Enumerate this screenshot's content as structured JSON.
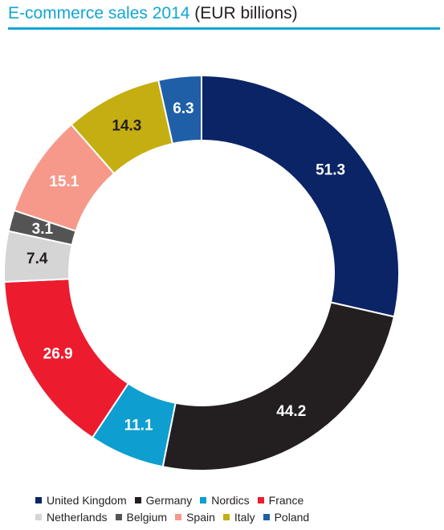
{
  "title": {
    "main": "E-commerce sales 2014",
    "unit": " (EUR billions)"
  },
  "chart_data": {
    "type": "pie",
    "style": "donut",
    "title": "E-commerce sales 2014 (EUR billions)",
    "categories": [
      "United Kingdom",
      "Germany",
      "Nordics",
      "France",
      "Netherlands",
      "Belgium",
      "Spain",
      "Italy",
      "Poland"
    ],
    "values": [
      51.3,
      44.2,
      11.1,
      26.9,
      7.4,
      3.1,
      15.1,
      14.3,
      6.3
    ],
    "labels": [
      "51.3",
      "44.2",
      "11.1",
      "26.9",
      "7.4",
      "3.1",
      "15.1",
      "14.3",
      "6.3"
    ],
    "colors": [
      "#0a2466",
      "#231f20",
      "#0e9ed0",
      "#ec1c2e",
      "#d5d5d5",
      "#545454",
      "#f6998a",
      "#c4ae12",
      "#1f5fa8"
    ],
    "label_colors": [
      "#ffffff",
      "#ffffff",
      "#ffffff",
      "#ffffff",
      "#231f20",
      "#ffffff",
      "#ffffff",
      "#231f20",
      "#ffffff"
    ],
    "legend_position": "bottom",
    "legend_rows": [
      [
        0,
        1,
        2,
        3
      ],
      [
        4,
        5,
        6,
        7,
        8
      ]
    ]
  }
}
